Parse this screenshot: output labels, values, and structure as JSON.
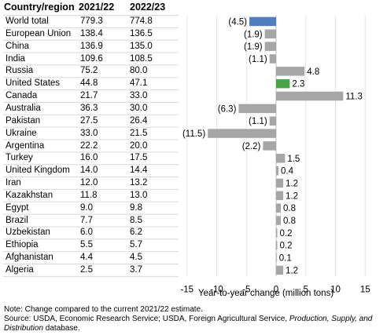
{
  "headers": {
    "country": "Country/region",
    "y1": "2021/22",
    "y2": "2022/23"
  },
  "chart_data": {
    "type": "bar",
    "orientation": "horizontal",
    "categories": [
      "World total",
      "European Union",
      "China",
      "India",
      "Russia",
      "United States",
      "Canada",
      "Australia",
      "Pakistan",
      "Ukraine",
      "Argentina",
      "Turkey",
      "United Kingdom",
      "Iran",
      "Kazakhstan",
      "Egypt",
      "Brazil",
      "Uzbekistan",
      "Ethiopia",
      "Afghanistan",
      "Algeria"
    ],
    "table": {
      "2021/22": [
        779.3,
        138.4,
        136.9,
        109.6,
        75.2,
        44.8,
        21.7,
        36.3,
        27.5,
        33.0,
        22.2,
        16.0,
        14.0,
        12.0,
        11.8,
        9.0,
        7.7,
        6.0,
        5.5,
        4.4,
        2.5
      ],
      "2022/23": [
        774.8,
        136.5,
        135.0,
        108.5,
        80.0,
        47.1,
        33.0,
        30.0,
        26.4,
        21.5,
        20.0,
        17.5,
        14.4,
        13.2,
        13.0,
        9.8,
        8.5,
        6.2,
        5.7,
        4.5,
        3.7
      ]
    },
    "values": [
      -4.5,
      -1.9,
      -1.9,
      -1.1,
      4.8,
      2.3,
      11.3,
      -6.3,
      -1.1,
      -11.5,
      -2.2,
      1.5,
      0.4,
      1.2,
      1.2,
      0.8,
      0.8,
      0.2,
      0.2,
      0.1,
      1.2
    ],
    "value_labels": [
      "(4.5)",
      "(1.9)",
      "(1.9)",
      "(1.1)",
      "4.8",
      "2.3",
      "11.3",
      "(6.3)",
      "(1.1)",
      "(11.5)",
      "(2.2)",
      "1.5",
      "0.4",
      "1.2",
      "1.2",
      "0.8",
      "0.8",
      "0.2",
      "0.2",
      "0.1",
      "1.2"
    ],
    "bar_colors": {
      "default": "#a6a6a6",
      "World total": "#4f7fc0",
      "United States": "#4aa54a"
    },
    "xlim": [
      -15,
      15
    ],
    "xticks": [
      -15,
      -10,
      -5,
      0,
      5,
      10,
      15
    ],
    "xtick_labels": [
      "-15",
      "-10",
      "-5",
      "0",
      "5",
      "10",
      "15"
    ],
    "xlabel": "Year-to-year change (million tons)",
    "grid": true
  },
  "footer": {
    "note": "Note: Change compared to the current 2021/22 estimate.",
    "source_prefix": "Source: USDA, Economic Research Service; USDA, Foreign Agricultural Service, ",
    "source_italic": "Production, Supply, and Distribution",
    "source_suffix": " database."
  }
}
